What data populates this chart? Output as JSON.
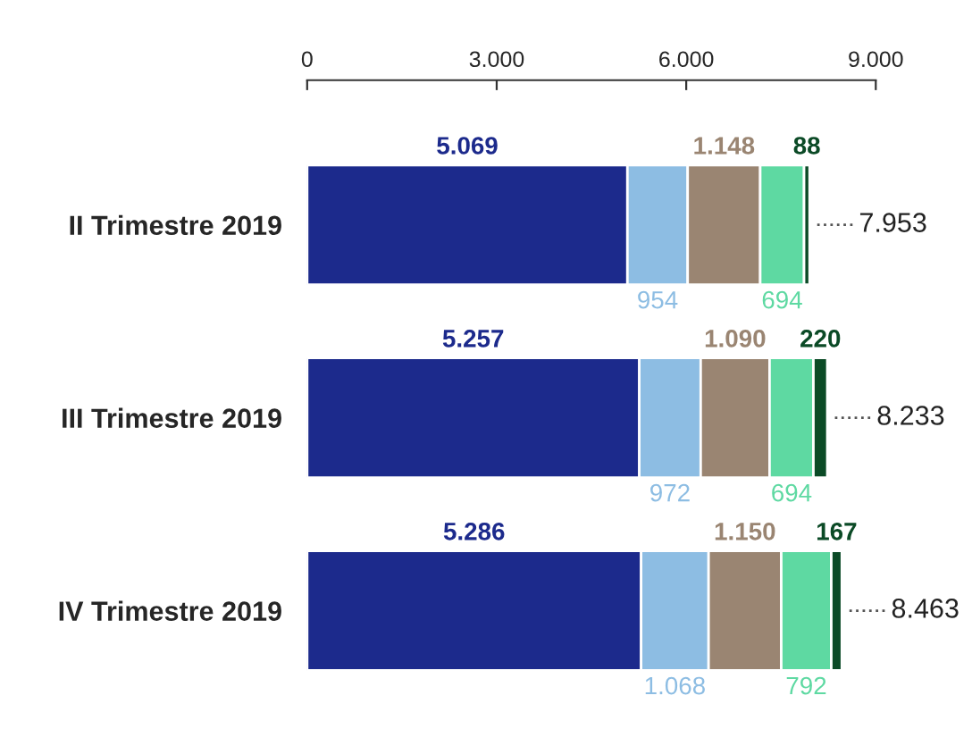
{
  "chart_data": {
    "type": "bar",
    "orientation": "horizontal",
    "stacked": true,
    "categories": [
      "II Trimestre 2019",
      "III Trimestre 2019",
      "IV Trimestre 2019"
    ],
    "series": [
      {
        "color": "#1c2a8c",
        "values": [
          5069,
          5257,
          5286
        ],
        "value_labels": [
          "5.069",
          "5.257",
          "5.286"
        ]
      },
      {
        "color": "#8dbde3",
        "values": [
          954,
          972,
          1068
        ],
        "value_labels": [
          "954",
          "972",
          "1.068"
        ]
      },
      {
        "color": "#9a8572",
        "values": [
          1148,
          1090,
          1150
        ],
        "value_labels": [
          "1.148",
          "1.090",
          "1.150"
        ]
      },
      {
        "color": "#5ed9a2",
        "values": [
          694,
          694,
          792
        ],
        "value_labels": [
          "694",
          "694",
          "792"
        ]
      },
      {
        "color": "#0b4a26",
        "values": [
          88,
          220,
          167
        ],
        "value_labels": [
          "88",
          "220",
          "167"
        ]
      }
    ],
    "totals": [
      "7.953",
      "8.233",
      "8.463"
    ],
    "xlim": [
      0,
      9000
    ],
    "xticks": [
      0,
      {
        "value": 3000,
        "label": "3.000"
      },
      {
        "value": 6000,
        "label": "6.000"
      },
      {
        "value": 9000,
        "label": "9.000"
      }
    ],
    "grid": false
  }
}
